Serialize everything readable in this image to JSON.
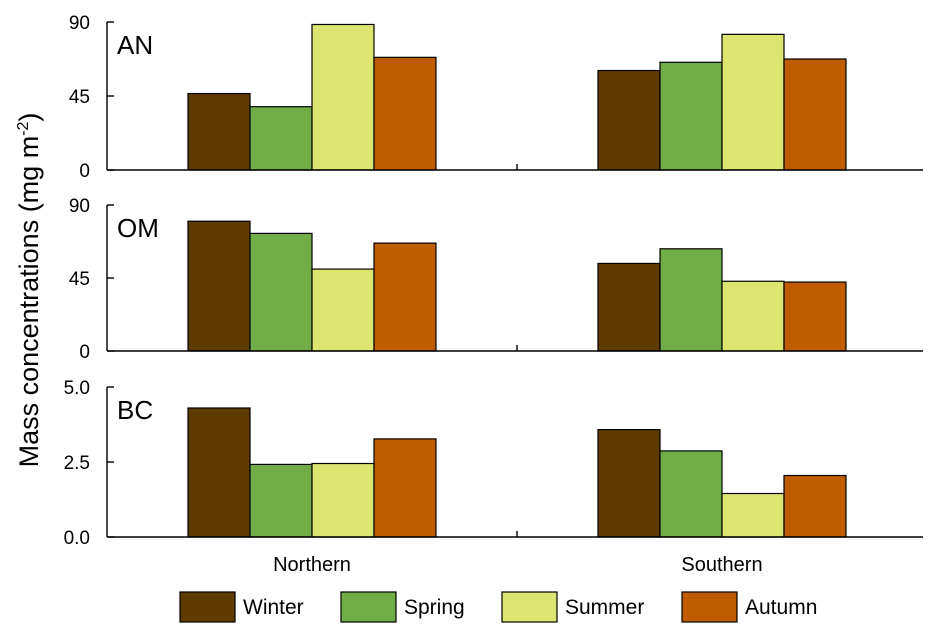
{
  "chart_data": {
    "type": "bar",
    "ylabel": {
      "main": "Mass concentrations (mg m",
      "sup": "-2",
      "close": ")"
    },
    "categories": [
      "Northern",
      "Southern"
    ],
    "series": [
      {
        "name": "Winter",
        "color": "#5e3c00"
      },
      {
        "name": "Spring",
        "color": "#70ad47"
      },
      {
        "name": "Summer",
        "color": "#dbe56f"
      },
      {
        "name": "Autumn",
        "color": "#c05c00"
      }
    ],
    "legend_position": "bottom",
    "grid": false,
    "panels": [
      {
        "label": "AN",
        "ylim": [
          0,
          90
        ],
        "yticks": [
          "0",
          "45",
          "90"
        ],
        "tick_values": [
          0,
          45,
          90
        ],
        "values": [
          [
            46.5,
            38.5,
            88.5,
            68.5
          ],
          [
            60.5,
            65.5,
            82.5,
            67.5
          ]
        ]
      },
      {
        "label": "OM",
        "ylim": [
          0,
          90
        ],
        "yticks": [
          "0",
          "45",
          "90"
        ],
        "tick_values": [
          0,
          45,
          90
        ],
        "values": [
          [
            80,
            72.5,
            50.5,
            66.5
          ],
          [
            54,
            63,
            43,
            42.5
          ]
        ]
      },
      {
        "label": "BC",
        "ylim": [
          0,
          5
        ],
        "yticks": [
          "0.0",
          "2.5",
          "5.0"
        ],
        "tick_values": [
          0,
          2.5,
          5
        ],
        "values": [
          [
            4.3,
            2.42,
            2.45,
            3.27
          ],
          [
            3.58,
            2.87,
            1.45,
            2.05
          ]
        ]
      }
    ]
  }
}
